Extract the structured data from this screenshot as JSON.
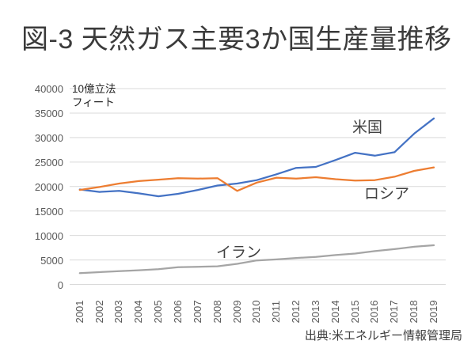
{
  "title": "図-3 天然ガス主要3か国生産量推移",
  "source": "出典:米エネルギー情報管理局",
  "unit_label": {
    "line1": "10億立法",
    "line2": "フィート"
  },
  "colors": {
    "us": "#4472C4",
    "russia": "#ED7D31",
    "iran": "#A5A5A5",
    "grid": "#D9D9D9",
    "axis_text": "#595959",
    "title_text": "#3B3B3B"
  },
  "chart_data": {
    "type": "line",
    "title": "図-3 天然ガス主要3か国生産量推移",
    "xlabel": "",
    "ylabel": "10億立法フィート",
    "x": [
      2001,
      2002,
      2003,
      2004,
      2005,
      2006,
      2007,
      2008,
      2009,
      2010,
      2011,
      2012,
      2013,
      2014,
      2015,
      2016,
      2017,
      2018,
      2019
    ],
    "series": [
      {
        "name": "米国",
        "color_key": "us",
        "values": [
          19400,
          18900,
          19100,
          18600,
          18000,
          18500,
          19300,
          20200,
          20600,
          21300,
          22500,
          23800,
          24000,
          25400,
          26900,
          26300,
          27000,
          30800,
          33900
        ]
      },
      {
        "name": "ロシア",
        "color_key": "russia",
        "values": [
          19300,
          19900,
          20600,
          21100,
          21400,
          21700,
          21600,
          21700,
          19100,
          20800,
          21800,
          21600,
          21900,
          21500,
          21200,
          21300,
          22000,
          23200,
          23900
        ]
      },
      {
        "name": "イラン",
        "color_key": "iran",
        "values": [
          2300,
          2500,
          2700,
          2900,
          3100,
          3500,
          3600,
          3700,
          4200,
          4900,
          5100,
          5400,
          5600,
          6000,
          6300,
          6800,
          7200,
          7700,
          8000
        ]
      }
    ],
    "ylim": [
      0,
      40000
    ],
    "ytick_step": 5000,
    "grid": true,
    "legend_position": "inline-labels"
  }
}
